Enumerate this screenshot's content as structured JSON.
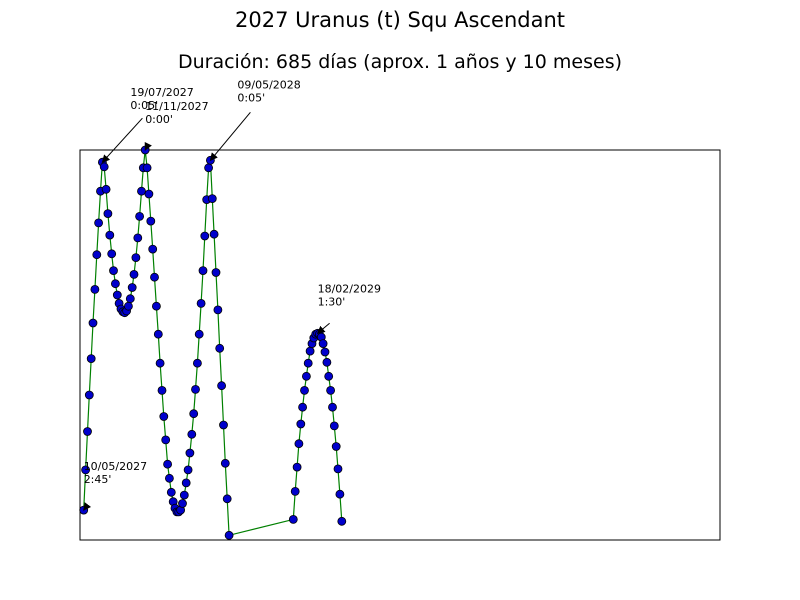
{
  "chart_data": {
    "type": "line",
    "title": "2027 Uranus (t) Squ Ascendant",
    "subtitle": "Duración: 685 días (aprox. 1 años y 10 meses)",
    "xlabel": "",
    "ylabel": "",
    "grid": false,
    "axis_ticks": false,
    "x_unit": "days",
    "xlim": [
      -4,
      683
    ],
    "ylim": [
      0,
      4.17
    ],
    "line_color": "#008000",
    "marker_color": "#0000cc",
    "marker_edge_color": "#000000",
    "series": [
      {
        "values": [
          [
            0,
            0.32
          ],
          [
            2,
            0.75
          ],
          [
            4,
            1.16
          ],
          [
            6,
            1.55
          ],
          [
            8,
            1.94
          ],
          [
            10,
            2.32
          ],
          [
            12,
            2.68
          ],
          [
            14,
            3.05
          ],
          [
            16,
            3.39
          ],
          [
            18,
            3.73
          ],
          [
            20,
            4.04
          ],
          [
            22,
            3.99
          ],
          [
            24,
            3.75
          ],
          [
            26,
            3.49
          ],
          [
            28,
            3.26
          ],
          [
            30,
            3.06
          ],
          [
            32,
            2.88
          ],
          [
            34,
            2.74
          ],
          [
            36,
            2.62
          ],
          [
            38,
            2.53
          ],
          [
            40,
            2.47
          ],
          [
            42,
            2.44
          ],
          [
            44,
            2.43
          ],
          [
            46,
            2.45
          ],
          [
            48,
            2.5
          ],
          [
            50,
            2.58
          ],
          [
            52,
            2.7
          ],
          [
            54,
            2.84
          ],
          [
            56,
            3.02
          ],
          [
            58,
            3.23
          ],
          [
            60,
            3.46
          ],
          [
            62,
            3.73
          ],
          [
            64,
            3.98
          ],
          [
            66,
            4.17
          ],
          [
            68,
            3.98
          ],
          [
            70,
            3.7
          ],
          [
            72,
            3.41
          ],
          [
            74,
            3.11
          ],
          [
            76,
            2.81
          ],
          [
            78,
            2.5
          ],
          [
            80,
            2.2
          ],
          [
            82,
            1.89
          ],
          [
            84,
            1.6
          ],
          [
            86,
            1.32
          ],
          [
            88,
            1.07
          ],
          [
            90,
            0.81
          ],
          [
            92,
            0.66
          ],
          [
            94,
            0.51
          ],
          [
            96,
            0.41
          ],
          [
            98,
            0.34
          ],
          [
            100,
            0.3
          ],
          [
            102,
            0.3
          ],
          [
            104,
            0.32
          ],
          [
            106,
            0.39
          ],
          [
            108,
            0.48
          ],
          [
            110,
            0.61
          ],
          [
            112,
            0.75
          ],
          [
            114,
            0.93
          ],
          [
            116,
            1.13
          ],
          [
            118,
            1.35
          ],
          [
            120,
            1.61
          ],
          [
            122,
            1.89
          ],
          [
            124,
            2.2
          ],
          [
            126,
            2.53
          ],
          [
            128,
            2.88
          ],
          [
            130,
            3.25
          ],
          [
            132,
            3.64
          ],
          [
            134,
            3.98
          ],
          [
            136,
            4.06
          ],
          [
            138,
            3.65
          ],
          [
            140,
            3.27
          ],
          [
            142,
            2.86
          ],
          [
            144,
            2.46
          ],
          [
            146,
            2.05
          ],
          [
            148,
            1.65
          ],
          [
            150,
            1.23
          ],
          [
            152,
            0.82
          ],
          [
            154,
            0.44
          ],
          [
            156,
            0.05
          ],
          [
            225,
            0.22
          ],
          [
            227,
            0.52
          ],
          [
            229,
            0.78
          ],
          [
            231,
            1.03
          ],
          [
            233,
            1.24
          ],
          [
            235,
            1.42
          ],
          [
            237,
            1.6
          ],
          [
            239,
            1.75
          ],
          [
            241,
            1.89
          ],
          [
            243,
            2.02
          ],
          [
            245,
            2.1
          ],
          [
            247,
            2.16
          ],
          [
            249,
            2.2
          ],
          [
            251,
            2.21
          ],
          [
            253,
            2.2
          ],
          [
            255,
            2.17
          ],
          [
            257,
            2.1
          ],
          [
            259,
            2.01
          ],
          [
            261,
            1.9
          ],
          [
            263,
            1.75
          ],
          [
            265,
            1.6
          ],
          [
            267,
            1.42
          ],
          [
            269,
            1.22
          ],
          [
            271,
            1.0
          ],
          [
            273,
            0.76
          ],
          [
            275,
            0.49
          ],
          [
            277,
            0.2
          ]
        ]
      }
    ],
    "annotations": [
      {
        "date": "10/05/2027",
        "value": "2:45'",
        "x": 0,
        "y": 0.32
      },
      {
        "date": "19/07/2027",
        "value": "0:05'",
        "x": 20,
        "y": 4.04
      },
      {
        "date": "11/11/2027",
        "value": "0:00'",
        "x": 66,
        "y": 4.17
      },
      {
        "date": "09/05/2028",
        "value": "0:05'",
        "x": 136,
        "y": 4.06
      },
      {
        "date": "18/02/2029",
        "value": "1:30'",
        "x": 251,
        "y": 2.21
      }
    ]
  }
}
